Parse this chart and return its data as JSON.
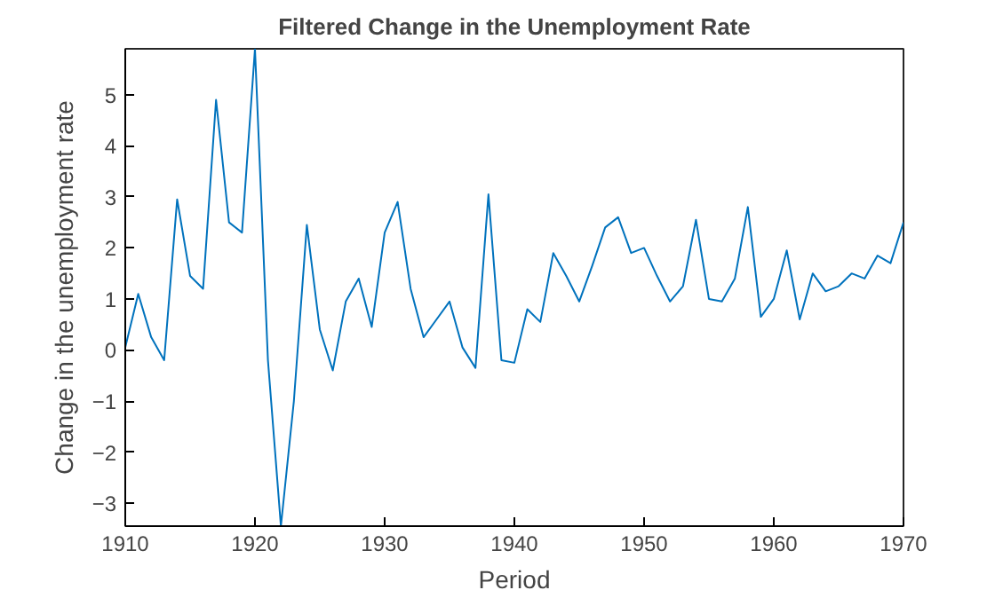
{
  "chart_data": {
    "type": "line",
    "title": "Filtered Change in the Unemployment Rate",
    "xlabel": "Period",
    "ylabel": "Change in the unemployment rate",
    "x": [
      1910,
      1911,
      1912,
      1913,
      1914,
      1915,
      1916,
      1917,
      1918,
      1919,
      1920,
      1921,
      1922,
      1923,
      1924,
      1925,
      1926,
      1927,
      1928,
      1929,
      1930,
      1931,
      1932,
      1933,
      1934,
      1935,
      1936,
      1937,
      1938,
      1939,
      1940,
      1941,
      1942,
      1943,
      1944,
      1945,
      1946,
      1947,
      1948,
      1949,
      1950,
      1951,
      1952,
      1953,
      1954,
      1955,
      1956,
      1957,
      1958,
      1959,
      1960,
      1961,
      1962,
      1963,
      1964,
      1965,
      1966,
      1967,
      1968,
      1969,
      1970
    ],
    "series": [
      {
        "color": "#0072bd",
        "values": [
          0.05,
          1.1,
          0.25,
          -0.2,
          2.95,
          1.45,
          1.2,
          4.9,
          2.5,
          2.3,
          5.9,
          -0.2,
          -3.45,
          -1.0,
          2.45,
          0.4,
          -0.4,
          0.95,
          1.4,
          0.45,
          2.3,
          2.9,
          1.2,
          0.25,
          0.6,
          0.95,
          0.05,
          -0.35,
          3.05,
          -0.2,
          -0.25,
          0.8,
          0.55,
          1.9,
          1.45,
          0.95,
          1.65,
          2.4,
          2.6,
          1.9,
          2.0,
          1.45,
          0.95,
          1.25,
          2.55,
          1.0,
          0.95,
          1.4,
          2.8,
          0.65,
          1.0,
          1.95,
          0.6,
          1.5,
          1.15,
          1.25,
          1.5,
          1.4,
          1.85,
          1.7,
          2.5
        ]
      }
    ],
    "xlim": [
      1910,
      1970
    ],
    "xticks": [
      1910,
      1920,
      1930,
      1940,
      1950,
      1960,
      1970
    ],
    "ylim": [
      -3.45,
      5.9
    ],
    "yticks": [
      -3,
      -2,
      -1,
      0,
      1,
      2,
      3,
      4,
      5
    ],
    "grid": false,
    "marker": "none",
    "line_style": "solid"
  }
}
